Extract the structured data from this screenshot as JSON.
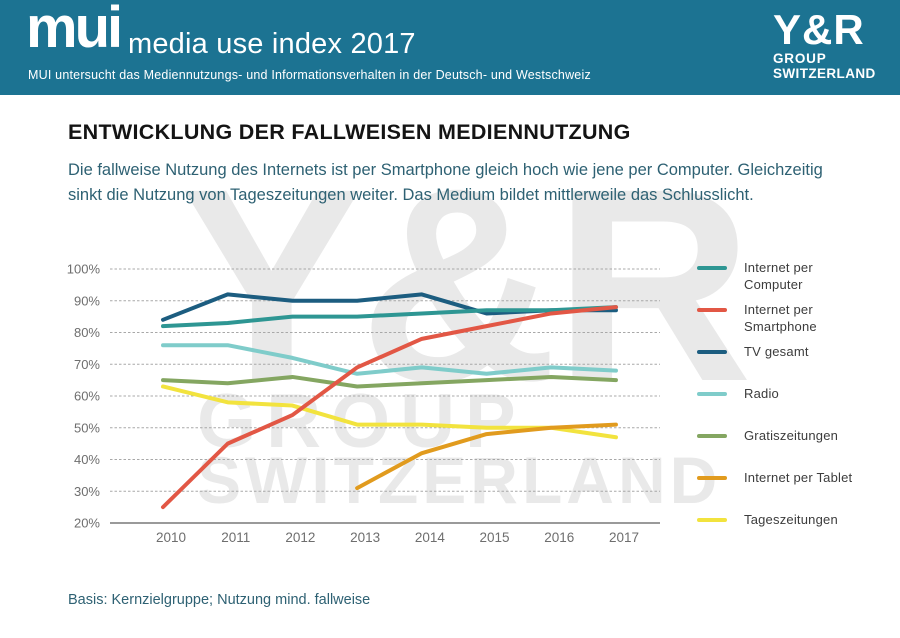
{
  "header": {
    "logo": "mui",
    "title": "media use index 2017",
    "subtitle": "MUI untersucht das Mediennutzungs- und Informationsverhalten in der Deutsch- und Westschweiz",
    "bg_color": "#1c7392",
    "brand": {
      "line1": "Y&R",
      "line2": "GROUP",
      "line3": "SWITZERLAND"
    }
  },
  "main": {
    "heading": "ENTWICKLUNG DER FALLWEISEN MEDIENNUTZUNG",
    "intro": "Die fallweise Nutzung des Internets ist per Smartphone gleich hoch wie jene per Computer. Gleichzeitig sinkt die Nutzung von Tageszeitungen weiter. Das Medium bildet mittlerweile das Schlusslicht.",
    "footnote": "Basis: Kernzielgruppe; Nutzung mind. fallweise"
  },
  "watermark": {
    "line1": "Y&R",
    "line2": "GROUP",
    "line3": "SWITZERLAND",
    "color": "#e9e9e9"
  },
  "chart_data": {
    "type": "line",
    "title": "",
    "xlabel": "",
    "ylabel": "",
    "categories": [
      "2010",
      "2011",
      "2012",
      "2013",
      "2014",
      "2015",
      "2016",
      "2017"
    ],
    "yticks": [
      "100%",
      "90%",
      "80%",
      "70%",
      "60%",
      "50%",
      "40%",
      "30%",
      "20%"
    ],
    "ylim": [
      20,
      100
    ],
    "grid": "horizontal-dashed",
    "legend_position": "right",
    "gridline_color": "#a8a8a8",
    "axis_color": "#787878",
    "tick_label_color": "#6e6e6e",
    "draw_order": [
      2,
      3,
      4,
      6,
      5,
      0,
      1
    ],
    "series": [
      {
        "name": "Internet per Computer",
        "color": "#2e9693",
        "values": [
          82,
          83,
          85,
          85,
          86,
          87,
          87,
          88
        ]
      },
      {
        "name": "Internet per Smartphone",
        "color": "#e25745",
        "values": [
          25,
          45,
          54,
          69,
          78,
          82,
          86,
          88
        ]
      },
      {
        "name": "TV gesamt",
        "color": "#1c5d80",
        "values": [
          84,
          92,
          90,
          90,
          92,
          86,
          87,
          87
        ]
      },
      {
        "name": "Radio",
        "color": "#7fccca",
        "values": [
          76,
          76,
          72,
          67,
          69,
          67,
          69,
          68
        ]
      },
      {
        "name": "Gratiszeitungen",
        "color": "#84a661",
        "values": [
          65,
          64,
          66,
          63,
          64,
          65,
          66,
          65
        ]
      },
      {
        "name": "Internet per Tablet",
        "color": "#e19b1e",
        "values": [
          null,
          null,
          null,
          31,
          42,
          48,
          50,
          51
        ]
      },
      {
        "name": "Tageszeitungen",
        "color": "#f2e33e",
        "values": [
          63,
          58,
          57,
          51,
          51,
          50,
          50,
          47
        ]
      }
    ]
  }
}
